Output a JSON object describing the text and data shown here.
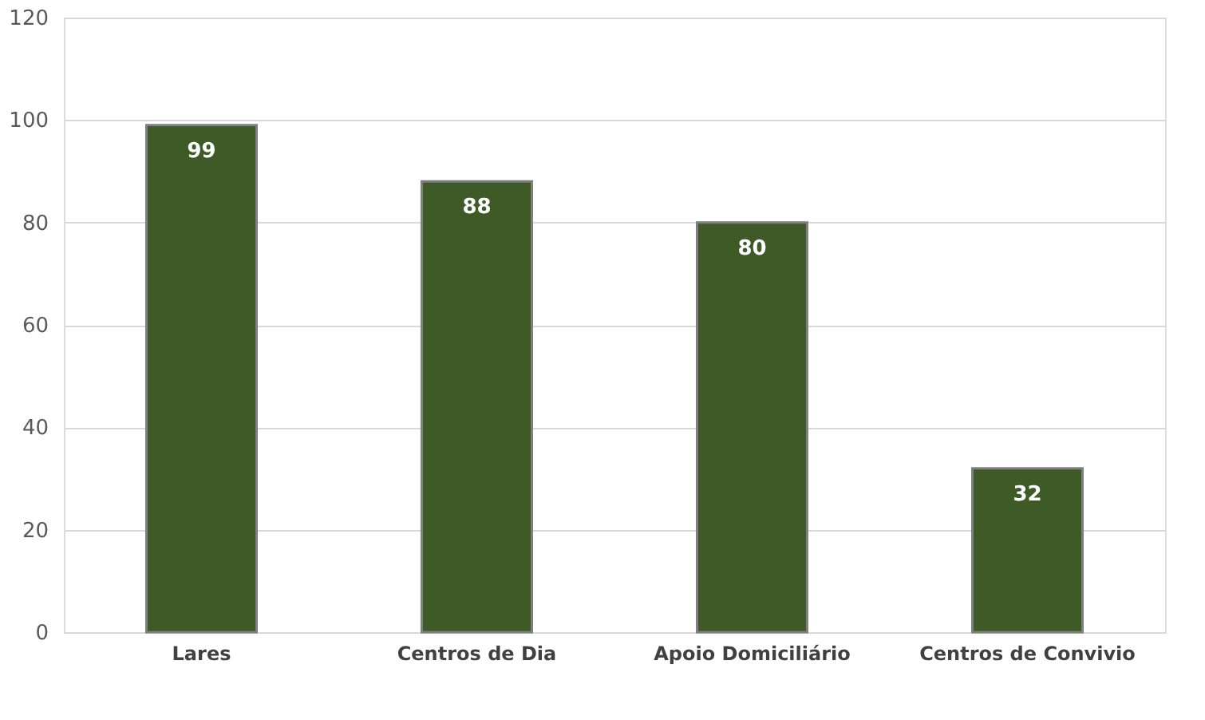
{
  "chart_data": {
    "type": "bar",
    "categories": [
      "Lares",
      "Centros de Dia",
      "Apoio Domiciliário",
      "Centros de Convivio"
    ],
    "values": [
      99,
      88,
      80,
      32
    ],
    "color": "#3d5a27",
    "ylim": [
      0,
      120
    ],
    "yticks": [
      0,
      20,
      40,
      60,
      80,
      100,
      120
    ],
    "grid": "y",
    "data_labels": true
  }
}
